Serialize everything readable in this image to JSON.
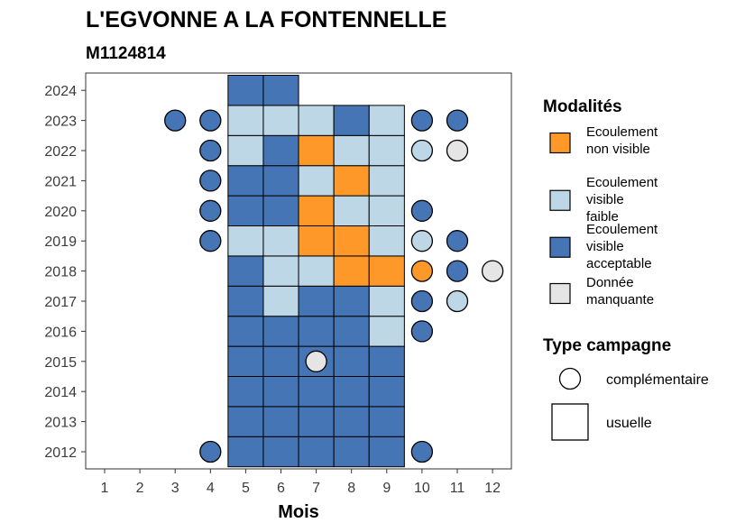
{
  "chart_data": {
    "type": "heatmap",
    "title": "L'EGVONNE A LA FONTENNELLE",
    "subtitle": "M1124814",
    "xlabel": "Mois",
    "ylabel": "",
    "x_ticks": [
      "1",
      "2",
      "3",
      "4",
      "5",
      "6",
      "7",
      "8",
      "9",
      "10",
      "11",
      "12"
    ],
    "y_ticks": [
      "2012",
      "2013",
      "2014",
      "2015",
      "2016",
      "2017",
      "2018",
      "2019",
      "2020",
      "2021",
      "2022",
      "2023",
      "2024"
    ],
    "colors": {
      "ecoulement_non_visible": "#FE9929",
      "ecoulement_visible_faible": "#BDD7E7",
      "ecoulement_visible_acceptable": "#4575B4",
      "donnee_manquante": "#E5E5E5"
    },
    "legend": {
      "modalites_title": "Modalités",
      "modalites": [
        {
          "key": "ecoulement_non_visible",
          "lines": [
            "Ecoulement",
            "non visible"
          ]
        },
        {
          "key": "ecoulement_visible_faible",
          "lines": [
            "Ecoulement",
            "visible",
            "faible"
          ]
        },
        {
          "key": "ecoulement_visible_acceptable",
          "lines": [
            "Ecoulement",
            "visible",
            "acceptable"
          ]
        },
        {
          "key": "donnee_manquante",
          "lines": [
            "Donnée",
            "manquante"
          ]
        }
      ],
      "campagne_title": "Type campagne",
      "campagne": [
        {
          "shape": "circle",
          "label": "complémentaire"
        },
        {
          "shape": "square",
          "label": "usuelle"
        }
      ]
    },
    "usuelle": [
      {
        "year": "2012",
        "values": {
          "5": "A",
          "6": "A",
          "7": "A",
          "8": "A",
          "9": "A"
        }
      },
      {
        "year": "2013",
        "values": {
          "5": "A",
          "6": "A",
          "7": "A",
          "8": "A",
          "9": "A"
        }
      },
      {
        "year": "2014",
        "values": {
          "5": "A",
          "6": "A",
          "7": "A",
          "8": "A",
          "9": "A"
        }
      },
      {
        "year": "2015",
        "values": {
          "5": "A",
          "6": "A",
          "7": "A",
          "8": "A",
          "9": "A"
        }
      },
      {
        "year": "2016",
        "values": {
          "5": "A",
          "6": "A",
          "7": "A",
          "8": "A",
          "9": "F"
        }
      },
      {
        "year": "2017",
        "values": {
          "5": "A",
          "6": "F",
          "7": "A",
          "8": "A",
          "9": "F"
        }
      },
      {
        "year": "2018",
        "values": {
          "5": "A",
          "6": "F",
          "7": "F",
          "8": "N",
          "9": "N"
        }
      },
      {
        "year": "2019",
        "values": {
          "5": "F",
          "6": "F",
          "7": "N",
          "8": "N",
          "9": "F"
        }
      },
      {
        "year": "2020",
        "values": {
          "5": "A",
          "6": "A",
          "7": "N",
          "8": "F",
          "9": "F"
        }
      },
      {
        "year": "2021",
        "values": {
          "5": "A",
          "6": "A",
          "7": "F",
          "8": "N",
          "9": "F"
        }
      },
      {
        "year": "2022",
        "values": {
          "5": "F",
          "6": "A",
          "7": "N",
          "8": "F",
          "9": "F"
        }
      },
      {
        "year": "2023",
        "values": {
          "5": "F",
          "6": "F",
          "7": "F",
          "8": "A",
          "9": "F"
        }
      },
      {
        "year": "2024",
        "values": {
          "5": "A",
          "6": "A"
        }
      }
    ],
    "complementaire": [
      {
        "year": "2012",
        "month": 4,
        "v": "A"
      },
      {
        "year": "2012",
        "month": 10,
        "v": "A"
      },
      {
        "year": "2015",
        "month": 7,
        "v": "M"
      },
      {
        "year": "2016",
        "month": 10,
        "v": "A"
      },
      {
        "year": "2017",
        "month": 10,
        "v": "A"
      },
      {
        "year": "2017",
        "month": 11,
        "v": "F"
      },
      {
        "year": "2018",
        "month": 10,
        "v": "N"
      },
      {
        "year": "2018",
        "month": 11,
        "v": "A"
      },
      {
        "year": "2018",
        "month": 12,
        "v": "M"
      },
      {
        "year": "2019",
        "month": 4,
        "v": "A"
      },
      {
        "year": "2019",
        "month": 10,
        "v": "F"
      },
      {
        "year": "2019",
        "month": 11,
        "v": "A"
      },
      {
        "year": "2020",
        "month": 4,
        "v": "A"
      },
      {
        "year": "2020",
        "month": 10,
        "v": "A"
      },
      {
        "year": "2021",
        "month": 4,
        "v": "A"
      },
      {
        "year": "2022",
        "month": 4,
        "v": "A"
      },
      {
        "year": "2022",
        "month": 10,
        "v": "F"
      },
      {
        "year": "2022",
        "month": 11,
        "v": "M"
      },
      {
        "year": "2023",
        "month": 3,
        "v": "A"
      },
      {
        "year": "2023",
        "month": 4,
        "v": "A"
      },
      {
        "year": "2023",
        "month": 10,
        "v": "A"
      },
      {
        "year": "2023",
        "month": 11,
        "v": "A"
      }
    ],
    "value_keys": {
      "N": "ecoulement_non_visible",
      "F": "ecoulement_visible_faible",
      "A": "ecoulement_visible_acceptable",
      "M": "donnee_manquante"
    }
  }
}
